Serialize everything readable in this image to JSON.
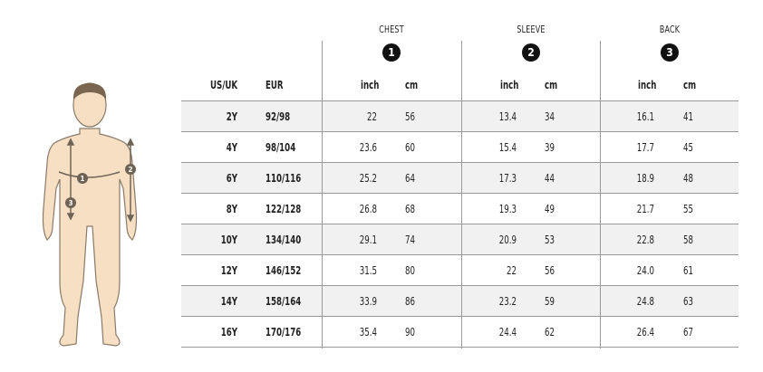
{
  "groups": [
    {
      "title": "CHEST",
      "badge": "1"
    },
    {
      "title": "SLEEVE",
      "badge": "2"
    },
    {
      "title": "BACK",
      "badge": "3"
    }
  ],
  "headers": {
    "us_uk": "US/UK",
    "eur": "EUR",
    "inch": "inch",
    "cm": "cm"
  },
  "figure": {
    "markers": [
      "1",
      "2",
      "3"
    ],
    "skin_color": "#f7dfc4",
    "outline_color": "#8a7a68",
    "hair_color": "#7a6650"
  },
  "rows": [
    {
      "us": "2Y",
      "eur": "92/98",
      "chest_in": "22",
      "chest_cm": "56",
      "sleeve_in": "13.4",
      "sleeve_cm": "34",
      "back_in": "16.1",
      "back_cm": "41"
    },
    {
      "us": "4Y",
      "eur": "98/104",
      "chest_in": "23.6",
      "chest_cm": "60",
      "sleeve_in": "15.4",
      "sleeve_cm": "39",
      "back_in": "17.7",
      "back_cm": "45"
    },
    {
      "us": "6Y",
      "eur": "110/116",
      "chest_in": "25.2",
      "chest_cm": "64",
      "sleeve_in": "17.3",
      "sleeve_cm": "44",
      "back_in": "18.9",
      "back_cm": "48"
    },
    {
      "us": "8Y",
      "eur": "122/128",
      "chest_in": "26.8",
      "chest_cm": "68",
      "sleeve_in": "19.3",
      "sleeve_cm": "49",
      "back_in": "21.7",
      "back_cm": "55"
    },
    {
      "us": "10Y",
      "eur": "134/140",
      "chest_in": "29.1",
      "chest_cm": "74",
      "sleeve_in": "20.9",
      "sleeve_cm": "53",
      "back_in": "22.8",
      "back_cm": "58"
    },
    {
      "us": "12Y",
      "eur": "146/152",
      "chest_in": "31.5",
      "chest_cm": "80",
      "sleeve_in": "22",
      "sleeve_cm": "56",
      "back_in": "24.0",
      "back_cm": "61"
    },
    {
      "us": "14Y",
      "eur": "158/164",
      "chest_in": "33.9",
      "chest_cm": "86",
      "sleeve_in": "23.2",
      "sleeve_cm": "59",
      "back_in": "24.8",
      "back_cm": "63"
    },
    {
      "us": "16Y",
      "eur": "170/176",
      "chest_in": "35.4",
      "chest_cm": "90",
      "sleeve_in": "24.4",
      "sleeve_cm": "62",
      "back_in": "26.4",
      "back_cm": "67"
    }
  ]
}
